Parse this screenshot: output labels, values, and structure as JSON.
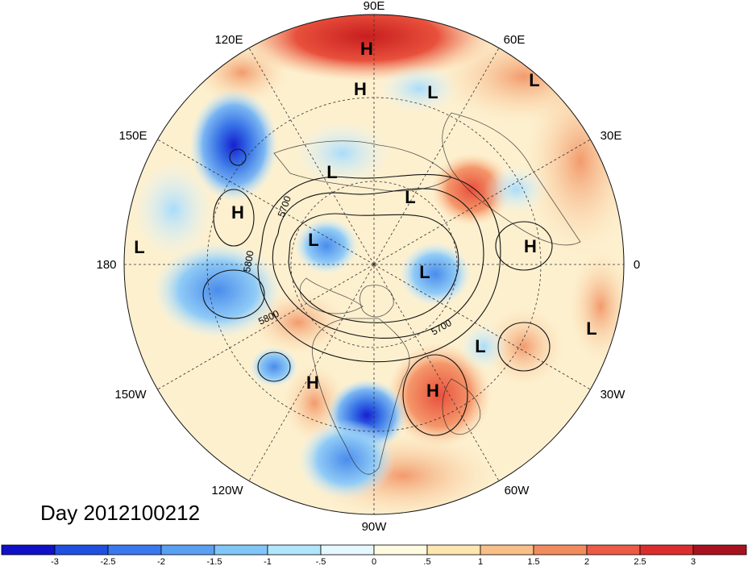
{
  "map": {
    "date_label": "Day 2012100212",
    "longitude_labels": [
      {
        "text": "90E",
        "lon": 90
      },
      {
        "text": "60E",
        "lon": 60
      },
      {
        "text": "30E",
        "lon": 30
      },
      {
        "text": "0",
        "lon": 0
      },
      {
        "text": "30W",
        "lon": -30
      },
      {
        "text": "60W",
        "lon": -60
      },
      {
        "text": "90W",
        "lon": -90
      },
      {
        "text": "120W",
        "lon": -120
      },
      {
        "text": "150W",
        "lon": -150
      },
      {
        "text": "180",
        "lon": 180
      },
      {
        "text": "150E",
        "lon": 150
      },
      {
        "text": "120E",
        "lon": 120
      }
    ],
    "pressure_centers": [
      {
        "type": "H"
      },
      {
        "type": "H"
      },
      {
        "type": "L"
      },
      {
        "type": "L"
      },
      {
        "type": "L"
      },
      {
        "type": "L"
      },
      {
        "type": "H"
      },
      {
        "type": "L"
      },
      {
        "type": "L"
      },
      {
        "type": "H"
      },
      {
        "type": "L"
      },
      {
        "type": "L"
      },
      {
        "type": "L"
      },
      {
        "type": "H"
      },
      {
        "type": "H"
      }
    ],
    "contour_labels": [
      "5700",
      "5800",
      "5800",
      "5700"
    ],
    "colors": {
      "anom_pos_strong": "#c81e1e",
      "anom_pos": "#f08a5c",
      "anom_pos_weak": "#fde6b8",
      "anom_neg_weak": "#dff4ff",
      "anom_neg": "#6fb0ee",
      "anom_neg_strong": "#1620d0"
    }
  },
  "colorbar": {
    "ticks": [
      "-3",
      "-2.5",
      "-2",
      "-1.5",
      "-1",
      "-.5",
      "0",
      ".5",
      "1",
      "1.5",
      "2",
      "2.5",
      "3"
    ],
    "colors": [
      "#1010c8",
      "#2050e0",
      "#3a78ee",
      "#5aa0f2",
      "#80c6f8",
      "#b0e6fc",
      "#e6f8ff",
      "#fffbe0",
      "#fde6b0",
      "#f9bf88",
      "#f28c5e",
      "#ec5b45",
      "#dc2d2d",
      "#a8121e"
    ]
  }
}
